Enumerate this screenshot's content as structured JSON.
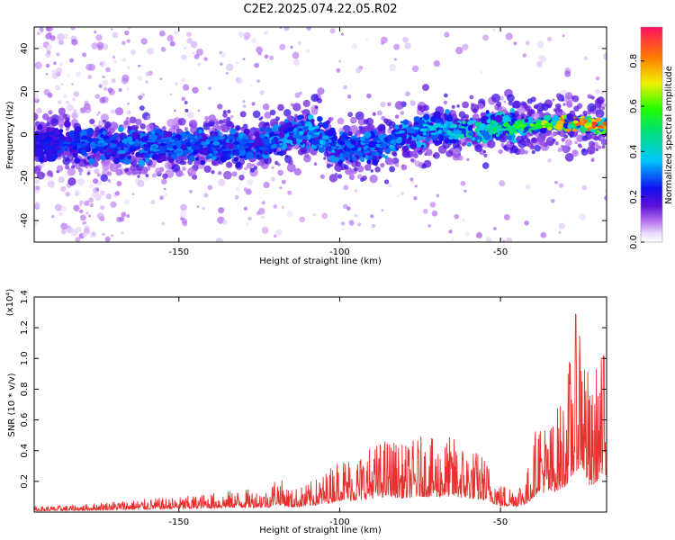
{
  "title": "C2E2.2025.074.22.05.R02",
  "colors": {
    "snr_line": "#e8312e",
    "spec_low": "#d9c2f5",
    "spec_mid": "#7a14e0",
    "spec_core": "#3b1cf0"
  },
  "chart_data": [
    {
      "type": "heatmap",
      "xlabel": "Height of straight line (km)",
      "ylabel": "Frequency (Hz)",
      "xlim": [
        -195,
        -17
      ],
      "ylim": [
        -50,
        50
      ],
      "xticks": [
        -150,
        -100,
        -50
      ],
      "xtick_labels": [
        "-150",
        "-100",
        "-50"
      ],
      "yticks": [
        -40,
        -20,
        0,
        20,
        40
      ],
      "ytick_labels": [
        "-40",
        "-20",
        "0",
        "20",
        "40"
      ],
      "colorbar": {
        "label": "Normalized spectral amplitude",
        "range": [
          0,
          0.95
        ],
        "ticks": [
          0.0,
          0.2,
          0.4,
          0.6,
          0.8
        ],
        "tick_labels": [
          "0.0",
          "0.2",
          "0.4",
          "0.6",
          "0.8"
        ],
        "colormap": "rainbow (violet-blue-cyan-green-yellow-red)"
      },
      "ridge": {
        "x": [
          -195,
          -175,
          -150,
          -125,
          -110,
          -100,
          -90,
          -75,
          -60,
          -50,
          -40,
          -30,
          -20,
          -17
        ],
        "freq_hz": [
          -4,
          -5,
          -5,
          -5,
          3,
          -6,
          -5,
          2,
          3,
          4,
          4,
          6,
          4,
          4
        ],
        "peak_amplitude": [
          0.25,
          0.35,
          0.35,
          0.35,
          0.4,
          0.35,
          0.35,
          0.4,
          0.5,
          0.55,
          0.7,
          0.95,
          0.95,
          0.9
        ]
      }
    },
    {
      "type": "line",
      "xlabel": "Height of straight line (km)",
      "ylabel": "SNR (10 * v/v)",
      "y_multiplier_label": "(x10⁴)",
      "xlim": [
        -195,
        -17
      ],
      "ylim": [
        0,
        1.4
      ],
      "xticks": [
        -150,
        -100,
        -50
      ],
      "xtick_labels": [
        "-150",
        "-100",
        "-50"
      ],
      "yticks": [
        0.2,
        0.4,
        0.6,
        0.8,
        1.0,
        1.2,
        1.4
      ],
      "ytick_labels": [
        "0.2",
        "0.4",
        "0.6",
        "0.8",
        "1.0",
        "1.2",
        "1.4"
      ],
      "series": [
        {
          "x": [
            -195,
            -180,
            -170,
            -160,
            -150,
            -140,
            -130,
            -122,
            -120,
            -115,
            -110,
            -105,
            -100,
            -95,
            -90,
            -85,
            -80,
            -75,
            -70,
            -65,
            -60,
            -55,
            -50,
            -45,
            -42,
            -40,
            -38,
            -35,
            -30,
            -27,
            -25,
            -22,
            -20,
            -17
          ],
          "y": [
            0.03,
            0.04,
            0.06,
            0.07,
            0.08,
            0.1,
            0.12,
            0.12,
            0.2,
            0.12,
            0.15,
            0.2,
            0.3,
            0.3,
            0.35,
            0.4,
            0.35,
            0.4,
            0.38,
            0.4,
            0.35,
            0.3,
            0.15,
            0.15,
            0.2,
            0.35,
            0.55,
            0.45,
            0.65,
            1.0,
            1.2,
            0.6,
            0.8,
            0.9
          ]
        }
      ]
    }
  ]
}
